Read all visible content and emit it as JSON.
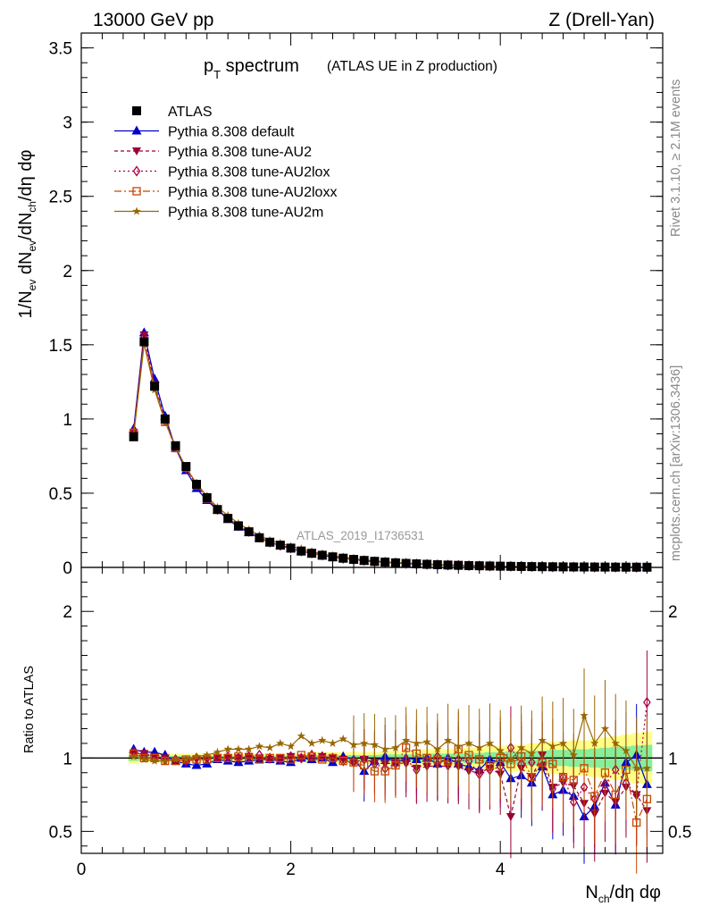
{
  "header": {
    "left": "13000 GeV pp",
    "right": "Z (Drell-Yan)"
  },
  "title": {
    "main": "p",
    "main_sub": "T",
    "main_rest": " spectrum",
    "paren": "(ATLAS UE in Z production)"
  },
  "side_labels": {
    "rivet": "Rivet 3.1.10, ≥ 2.1M events",
    "mcplots": "mcplots.cern.ch [arXiv:1306.3436]"
  },
  "watermark": "ATLAS_2019_I1736531",
  "axes": {
    "top_ylabel": "1/N_ev dN_ev/dN_ch/dη dφ",
    "bottom_ylabel": "Ratio to ATLAS",
    "xlabel": "N_ch/dη dφ",
    "top_ylim": [
      0,
      3.6
    ],
    "bottom_ylim": [
      0.35,
      2.3
    ],
    "xlim": [
      0,
      5.55
    ],
    "top_yticks": [
      "0",
      "0.5",
      "1",
      "1.5",
      "2",
      "2.5",
      "3",
      "3.5"
    ],
    "bottom_yticks": [
      "0.5",
      "1",
      "2"
    ],
    "xticks": [
      "0",
      "2",
      "4"
    ]
  },
  "legend": [
    {
      "label": "ATLAS",
      "color": "#000000",
      "marker": "square",
      "dash": "none"
    },
    {
      "label": "Pythia 8.308 default",
      "color": "#0000cc",
      "marker": "triangle-up",
      "dash": "solid"
    },
    {
      "label": "Pythia 8.308 tune-AU2",
      "color": "#990033",
      "marker": "triangle-down",
      "dash": "4,3"
    },
    {
      "label": "Pythia 8.308 tune-AU2lox",
      "color": "#aa0044",
      "marker": "diamond",
      "dash": "2,3"
    },
    {
      "label": "Pythia 8.308 tune-AU2loxx",
      "color": "#cc4400",
      "marker": "open-square",
      "dash": "8,3,2,3"
    },
    {
      "label": "Pythia 8.308 tune-AU2m",
      "color": "#996600",
      "marker": "star",
      "dash": "solid"
    }
  ],
  "chart_data": {
    "type": "line",
    "x": [
      0.5,
      0.6,
      0.7,
      0.8,
      0.9,
      1.0,
      1.1,
      1.2,
      1.3,
      1.4,
      1.5,
      1.6,
      1.7,
      1.8,
      1.9,
      2.0,
      2.1,
      2.2,
      2.3,
      2.4,
      2.5,
      2.6,
      2.7,
      2.8,
      2.9,
      3.0,
      3.1,
      3.2,
      3.3,
      3.4,
      3.5,
      3.6,
      3.7,
      3.8,
      3.9,
      4.0,
      4.1,
      4.2,
      4.3,
      4.4,
      4.5,
      4.6,
      4.7,
      4.8,
      4.9,
      5.0,
      5.1,
      5.2,
      5.3,
      5.4
    ],
    "data_values": [
      0.88,
      1.52,
      1.22,
      1.0,
      0.82,
      0.68,
      0.56,
      0.47,
      0.39,
      0.33,
      0.28,
      0.24,
      0.2,
      0.17,
      0.15,
      0.13,
      0.11,
      0.095,
      0.082,
      0.071,
      0.062,
      0.054,
      0.047,
      0.041,
      0.036,
      0.031,
      0.027,
      0.024,
      0.021,
      0.018,
      0.016,
      0.014,
      0.012,
      0.011,
      0.0095,
      0.0083,
      0.0072,
      0.0063,
      0.0055,
      0.0048,
      0.0042,
      0.0037,
      0.0032,
      0.0028,
      0.0025,
      0.0022,
      0.0019,
      0.0017,
      0.0015,
      0.0013
    ],
    "series": [
      {
        "name": "Pythia 8.308 default",
        "ratio": [
          1.06,
          1.04,
          1.04,
          1.02,
          0.98,
          0.96,
          0.95,
          0.96,
          0.99,
          0.98,
          0.97,
          0.98,
          0.99,
          0.99,
          0.98,
          0.97,
          1.0,
          0.99,
          1.0,
          0.97,
          1.01,
          0.99,
          0.91,
          0.98,
          1.01,
          0.97,
          1.0,
          0.99,
          1.0,
          0.96,
          1.0,
          0.96,
          0.94,
          0.92,
          0.99,
          0.97,
          0.86,
          0.88,
          0.83,
          0.94,
          0.75,
          0.78,
          0.74,
          0.6,
          0.67,
          0.83,
          0.68,
          0.97,
          1.02,
          0.82
        ]
      },
      {
        "name": "Pythia 8.308 tune-AU2",
        "ratio": [
          1.03,
          1.03,
          1.01,
          1.0,
          0.98,
          0.98,
          0.99,
          0.99,
          1.0,
          1.0,
          1.0,
          1.01,
          1.0,
          0.99,
          1.0,
          1.01,
          1.0,
          1.0,
          1.01,
          1.0,
          0.99,
          0.97,
          0.99,
          0.97,
          0.96,
          0.97,
          0.96,
          0.93,
          0.94,
          0.95,
          0.94,
          0.94,
          0.91,
          0.9,
          0.93,
          0.89,
          0.6,
          0.93,
          0.87,
          1.02,
          0.8,
          0.83,
          0.81,
          0.69,
          0.62,
          0.76,
          0.7,
          0.8,
          0.75,
          0.64
        ]
      },
      {
        "name": "Pythia 8.308 tune-AU2lox",
        "ratio": [
          1.04,
          1.02,
          1.0,
          0.99,
          0.99,
          0.98,
          1.0,
          1.0,
          1.0,
          1.01,
          1.0,
          1.01,
          1.02,
          1.0,
          0.99,
          1.01,
          1.0,
          1.02,
          1.01,
          1.0,
          0.98,
          0.97,
          0.99,
          0.96,
          0.93,
          0.96,
          0.99,
          0.92,
          0.98,
          1.01,
          0.96,
          0.99,
          0.98,
          0.89,
          0.92,
          0.94,
          1.07,
          0.96,
          0.97,
          0.95,
          0.79,
          0.87,
          0.7,
          0.8,
          0.72,
          0.82,
          0.92,
          0.83,
          0.75,
          1.38
        ]
      },
      {
        "name": "Pythia 8.308 tune-AU2loxx",
        "ratio": [
          1.03,
          1.0,
          1.0,
          0.98,
          0.98,
          0.99,
          0.99,
          0.99,
          1.0,
          1.0,
          1.01,
          1.0,
          0.99,
          1.0,
          1.0,
          0.99,
          1.02,
          1.01,
          0.99,
          1.0,
          0.98,
          0.97,
          0.95,
          0.91,
          0.91,
          0.95,
          1.07,
          1.03,
          1.0,
          0.99,
          0.98,
          1.06,
          1.02,
          0.99,
          0.95,
          1.0,
          0.96,
          1.01,
          0.87,
          0.97,
          0.96,
          0.87,
          0.85,
          0.93,
          0.74,
          0.9,
          0.75,
          0.92,
          0.56,
          0.72
        ]
      },
      {
        "name": "Pythia 8.308 tune-AU2m",
        "ratio": [
          1.01,
          0.99,
          0.98,
          0.98,
          0.99,
          0.99,
          1.01,
          1.02,
          1.04,
          1.06,
          1.06,
          1.06,
          1.08,
          1.07,
          1.1,
          1.08,
          1.15,
          1.1,
          1.12,
          1.1,
          1.13,
          1.09,
          1.1,
          1.09,
          1.06,
          1.07,
          1.12,
          1.1,
          1.11,
          1.06,
          1.12,
          1.08,
          1.1,
          1.07,
          1.1,
          1.05,
          0.99,
          1.07,
          1.03,
          1.12,
          1.08,
          1.1,
          1.02,
          1.29,
          1.1,
          1.2,
          1.1,
          1.05,
          0.93,
          0.93
        ]
      }
    ],
    "band_yellow_halfwidth": [
      0.04,
      0.03,
      0.03,
      0.03,
      0.03,
      0.03,
      0.03,
      0.03,
      0.03,
      0.03,
      0.03,
      0.03,
      0.03,
      0.03,
      0.03,
      0.03,
      0.03,
      0.04,
      0.04,
      0.04,
      0.04,
      0.04,
      0.04,
      0.04,
      0.05,
      0.05,
      0.05,
      0.05,
      0.06,
      0.06,
      0.06,
      0.06,
      0.07,
      0.07,
      0.08,
      0.08,
      0.09,
      0.09,
      0.1,
      0.1,
      0.11,
      0.11,
      0.12,
      0.12,
      0.13,
      0.14,
      0.15,
      0.16,
      0.17,
      0.18
    ],
    "band_green_halfwidth": [
      0.02,
      0.015,
      0.015,
      0.015,
      0.015,
      0.015,
      0.015,
      0.015,
      0.015,
      0.015,
      0.015,
      0.015,
      0.015,
      0.015,
      0.015,
      0.015,
      0.015,
      0.02,
      0.02,
      0.02,
      0.02,
      0.02,
      0.02,
      0.02,
      0.025,
      0.025,
      0.025,
      0.025,
      0.03,
      0.03,
      0.03,
      0.03,
      0.035,
      0.035,
      0.04,
      0.04,
      0.045,
      0.045,
      0.05,
      0.05,
      0.055,
      0.055,
      0.06,
      0.06,
      0.065,
      0.07,
      0.075,
      0.08,
      0.085,
      0.09
    ]
  }
}
